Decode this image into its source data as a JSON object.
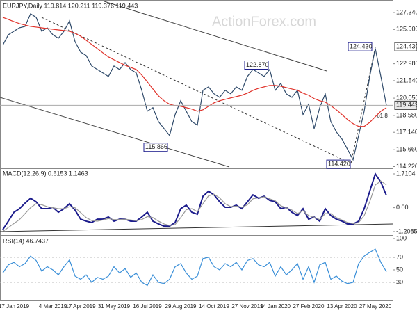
{
  "chart_data": [
    {
      "type": "line",
      "title": "EURJPY,Daily 119.814 120.211 119.376 119.443",
      "watermark": "ActionForex.com",
      "series": [
        {
          "color": "#2f4a6a",
          "values": [
            124.56,
            125.45,
            125.75,
            126.04,
            126.16,
            127.23,
            126.93,
            125.75,
            126.04,
            125.45,
            125.15,
            125.75,
            126.63,
            124.86,
            123.97,
            123.68,
            122.79,
            122.49,
            122.2,
            121.9,
            122.79,
            122.49,
            123.08,
            122.49,
            122.2,
            120.72,
            118.94,
            119.24,
            118.05,
            117.46,
            116.87,
            118.65,
            119.83,
            118.94,
            118.05,
            117.76,
            120.72,
            121.01,
            120.42,
            120.12,
            120.72,
            120.42,
            121.01,
            120.72,
            121.9,
            122.49,
            122.2,
            121.9,
            122.49,
            120.72,
            121.31,
            120.42,
            120.12,
            120.72,
            118.65,
            119.53,
            117.46,
            119.24,
            120.42,
            118.05,
            117.17,
            116.57,
            115.69,
            114.8,
            116.87,
            118.94,
            121.9,
            124.27,
            121.9,
            119.44
          ]
        },
        {
          "color": "#e0322a",
          "values": [
            126.93,
            126.75,
            126.57,
            126.4,
            126.28,
            126.16,
            126.1,
            126.04,
            125.98,
            125.92,
            125.86,
            125.81,
            125.75,
            125.57,
            125.33,
            124.98,
            124.62,
            124.27,
            123.91,
            123.56,
            123.32,
            123.08,
            122.85,
            122.67,
            122.49,
            122.02,
            121.43,
            120.83,
            120.24,
            119.83,
            119.53,
            119.41,
            119.36,
            119.24,
            119.12,
            118.94,
            119.06,
            119.36,
            119.65,
            119.83,
            119.95,
            120.07,
            120.18,
            120.3,
            120.48,
            120.72,
            120.89,
            121.01,
            121.13,
            121.13,
            121.07,
            120.95,
            120.83,
            120.72,
            120.48,
            120.3,
            120.01,
            119.83,
            119.71,
            119.41,
            119.06,
            118.65,
            118.23,
            117.88,
            117.64,
            117.64,
            117.99,
            118.47,
            118.94,
            119.24
          ]
        }
      ],
      "ylim": [
        114.19,
        128.29
      ],
      "yticks": [
        {
          "value": 127.34,
          "label": "127.340"
        },
        {
          "value": 125.9,
          "label": "125.900"
        },
        {
          "value": 122.98,
          "label": "122.980"
        },
        {
          "value": 121.54,
          "label": "121.540"
        },
        {
          "value": 120.05,
          "label": "120.050"
        },
        {
          "value": 118.58,
          "label": "118.580"
        },
        {
          "value": 117.14,
          "label": "117.140"
        },
        {
          "value": 115.66,
          "label": "115.660"
        },
        {
          "value": 114.22,
          "label": "114.220"
        }
      ],
      "price_marks": [
        {
          "value": 124.43,
          "label": "124.430"
        },
        119.443
      ],
      "annotations": [
        {
          "value": 122.87,
          "label": "122.870"
        },
        {
          "value": 115.866,
          "label": "115.866"
        },
        {
          "value": 114.42,
          "label": "114.420"
        },
        {
          "value": 124.43,
          "label": "124.430"
        }
      ],
      "fib_label": "61.8"
    },
    {
      "type": "line",
      "title": "MACD(12,26,9) 0.6153 1.1463",
      "series": [
        {
          "color": "#1c1c8c",
          "values": [
            -1.11,
            -0.68,
            -0.23,
            -0.05,
            0.23,
            0.48,
            0.3,
            -0.05,
            -0.05,
            0.02,
            -0.23,
            -0.05,
            0.2,
            -0.12,
            -0.58,
            -0.68,
            -0.75,
            -0.58,
            -0.58,
            -0.47,
            -0.68,
            -0.58,
            -0.58,
            -0.68,
            -0.68,
            -0.47,
            -0.23,
            -0.68,
            -0.82,
            -0.93,
            -0.93,
            -0.75,
            -0.05,
            0.13,
            -0.23,
            -0.33,
            0.58,
            0.83,
            0.65,
            0.3,
            0.02,
            0.02,
            0.13,
            -0.05,
            0.3,
            0.65,
            0.48,
            0.58,
            0.37,
            0.3,
            -0.05,
            0.02,
            -0.23,
            -0.4,
            -0.05,
            -0.58,
            -0.47,
            -0.68,
            -0.05,
            -0.4,
            -0.58,
            -0.68,
            -0.82,
            -0.82,
            -0.68,
            -0.05,
            0.83,
            1.71,
            1.29,
            0.62
          ]
        },
        {
          "color": "#999999",
          "values": [
            -1.2,
            -1.0,
            -0.8,
            -0.6,
            -0.3,
            0.0,
            0.2,
            0.15,
            0.05,
            0.0,
            -0.05,
            -0.05,
            0.05,
            0.0,
            -0.25,
            -0.5,
            -0.65,
            -0.68,
            -0.62,
            -0.55,
            -0.6,
            -0.6,
            -0.58,
            -0.62,
            -0.66,
            -0.6,
            -0.45,
            -0.5,
            -0.68,
            -0.82,
            -0.9,
            -0.85,
            -0.5,
            -0.1,
            -0.05,
            -0.2,
            0.2,
            0.6,
            0.68,
            0.5,
            0.2,
            0.05,
            0.08,
            0.02,
            0.15,
            0.45,
            0.5,
            0.55,
            0.45,
            0.35,
            0.1,
            0.0,
            -0.12,
            -0.3,
            -0.15,
            -0.4,
            -0.48,
            -0.6,
            -0.3,
            -0.3,
            -0.5,
            -0.62,
            -0.75,
            -0.8,
            -0.75,
            -0.4,
            0.3,
            1.15,
            1.35,
            1.15
          ]
        }
      ],
      "ylim": [
        -1.385,
        1.957
      ],
      "yticks": [
        1.7104,
        {
          "value": 0,
          "label": "0.00"
        },
        -1.2085
      ]
    },
    {
      "type": "line",
      "title": "RSI(14) 46.7437",
      "series": [
        {
          "color": "#3a8fd8",
          "values": [
            45,
            58,
            62,
            55,
            60,
            72,
            65,
            48,
            55,
            50,
            42,
            55,
            66,
            40,
            35,
            42,
            30,
            38,
            35,
            40,
            55,
            45,
            52,
            38,
            45,
            30,
            25,
            42,
            30,
            28,
            35,
            55,
            60,
            45,
            35,
            40,
            68,
            70,
            55,
            50,
            60,
            55,
            62,
            50,
            65,
            68,
            58,
            55,
            62,
            40,
            55,
            42,
            50,
            60,
            35,
            55,
            30,
            58,
            62,
            35,
            40,
            32,
            28,
            30,
            60,
            72,
            78,
            83,
            62,
            47
          ]
        }
      ],
      "ylim": [
        1.1,
        103.3
      ],
      "yticks": [
        100,
        70,
        50,
        30
      ],
      "categories": [
        null,
        null,
        "17 Jan 2019",
        null,
        null,
        null,
        null,
        null,
        null,
        "4 Mar 2019",
        null,
        null,
        null,
        null,
        "17 Apr 2019",
        null,
        null,
        null,
        null,
        null,
        "31 May 2019",
        null,
        null,
        null,
        null,
        null,
        "16 Jul 2019",
        null,
        null,
        null,
        null,
        null,
        "29 Aug 2019",
        null,
        null,
        null,
        null,
        null,
        "14 Oct 2019",
        null,
        null,
        null,
        null,
        null,
        "27 Nov 2019",
        null,
        null,
        null,
        null,
        "14 Jan 2020",
        null,
        null,
        null,
        null,
        null,
        "27 Feb 2020",
        null,
        null,
        null,
        null,
        null,
        "13 Apr 2020",
        null,
        null,
        null,
        null,
        null,
        "27 May 2020",
        null,
        null
      ]
    }
  ]
}
